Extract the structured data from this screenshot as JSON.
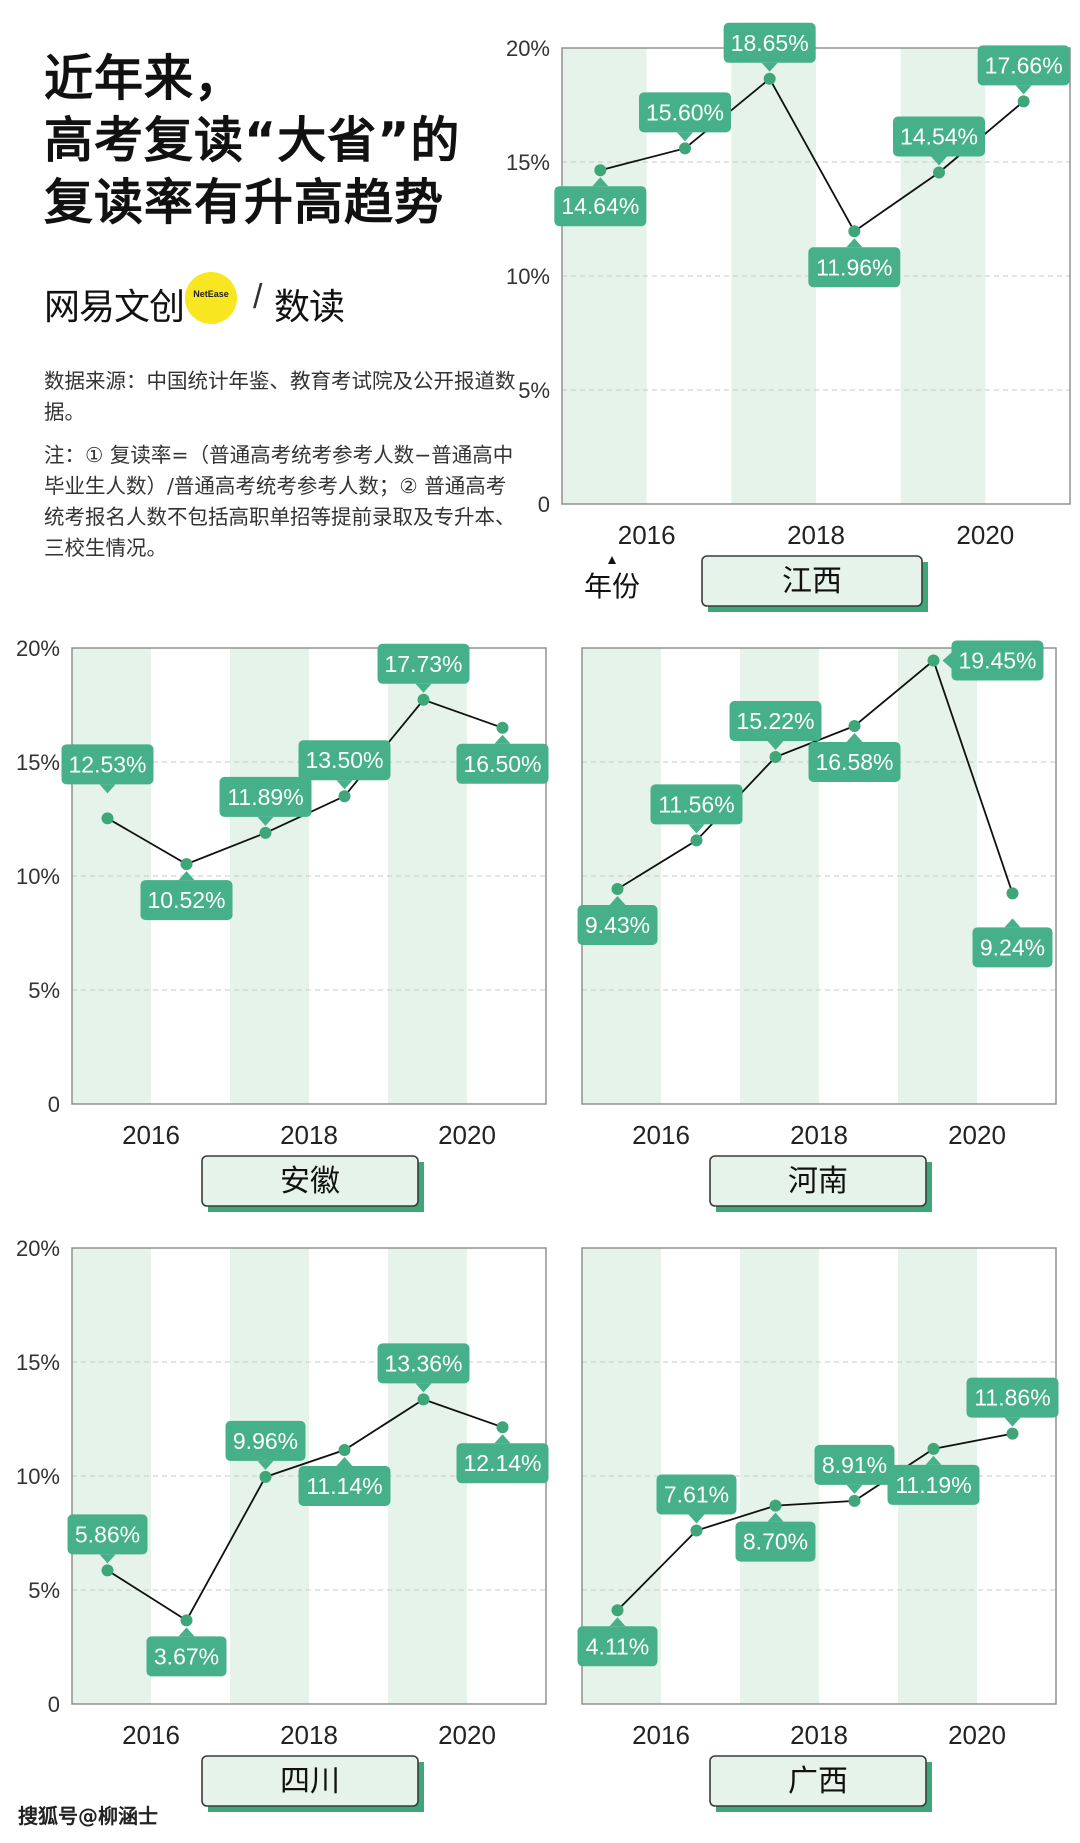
{
  "title_lines": [
    "近年来，",
    "高考复读“大省”的",
    "复读率有升高趋势"
  ],
  "brand": {
    "left": "网易文创",
    "small": "NetEase",
    "slash": "/",
    "right": "数读"
  },
  "source_note": "数据来源：中国统计年鉴、教育考试院及公开报道数据。",
  "notes": "注：① 复读率=（普通高考统考参考人数−普通高中毕业生人数）/普通高考统考参考人数；② 普通高考统考报名人数不包括高职单招等提前录取及专升本、三校生情况。",
  "x_axis_label": "年份",
  "watermark": "搜狐号@柳涵士",
  "colors": {
    "accent": "#3fa67a",
    "band": "#e5f3ea",
    "label_bg": "#46b08a",
    "line": "#111111"
  },
  "chart_data": [
    {
      "type": "line",
      "province": "江西",
      "x": [
        2016,
        2017,
        2018,
        2019,
        2020,
        2021
      ],
      "values": [
        14.64,
        15.6,
        18.65,
        11.96,
        14.54,
        17.66
      ],
      "value_labels": [
        "14.64%",
        "15.60%",
        "18.65%",
        "11.96%",
        "14.54%",
        "17.66%"
      ],
      "yticks": [
        "0",
        "5%",
        "10%",
        "15%",
        "20%"
      ],
      "ylim": [
        0,
        20
      ],
      "xticks": [
        "2016",
        "2018",
        "2020"
      ],
      "grid": true
    },
    {
      "type": "line",
      "province": "安徽",
      "x": [
        2016,
        2017,
        2018,
        2019,
        2020,
        2021
      ],
      "values": [
        12.53,
        10.52,
        11.89,
        13.5,
        17.73,
        16.5
      ],
      "value_labels": [
        "12.53%",
        "10.52%",
        "11.89%",
        "13.50%",
        "17.73%",
        "16.50%"
      ],
      "yticks": [
        "0",
        "5%",
        "10%",
        "15%",
        "20%"
      ],
      "ylim": [
        0,
        20
      ],
      "xticks": [
        "2016",
        "2018",
        "2020"
      ],
      "grid": true
    },
    {
      "type": "line",
      "province": "河南",
      "x": [
        2016,
        2017,
        2018,
        2019,
        2020,
        2021
      ],
      "values": [
        9.43,
        11.56,
        15.22,
        16.58,
        19.45,
        9.24
      ],
      "value_labels": [
        "9.43%",
        "11.56%",
        "15.22%",
        "16.58%",
        "19.45%",
        "9.24%"
      ],
      "yticks": [],
      "ylim": [
        0,
        20
      ],
      "xticks": [
        "2016",
        "2018",
        "2020"
      ],
      "grid": true
    },
    {
      "type": "line",
      "province": "四川",
      "x": [
        2016,
        2017,
        2018,
        2019,
        2020,
        2021
      ],
      "values": [
        5.86,
        3.67,
        9.96,
        11.14,
        13.36,
        12.14
      ],
      "value_labels": [
        "5.86%",
        "3.67%",
        "9.96%",
        "11.14%",
        "13.36%",
        "12.14%"
      ],
      "yticks": [
        "0",
        "5%",
        "10%",
        "15%",
        "20%"
      ],
      "ylim": [
        0,
        20
      ],
      "xticks": [
        "2016",
        "2018",
        "2020"
      ],
      "grid": true
    },
    {
      "type": "line",
      "province": "广西",
      "x": [
        2016,
        2017,
        2018,
        2019,
        2020,
        2021
      ],
      "values": [
        4.11,
        7.61,
        8.7,
        8.91,
        11.19,
        11.86
      ],
      "value_labels": [
        "4.11%",
        "7.61%",
        "8.70%",
        "8.91%",
        "11.19%",
        "11.86%"
      ],
      "yticks": [],
      "ylim": [
        0,
        20
      ],
      "xticks": [
        "2016",
        "2018",
        "2020"
      ],
      "grid": true
    }
  ]
}
